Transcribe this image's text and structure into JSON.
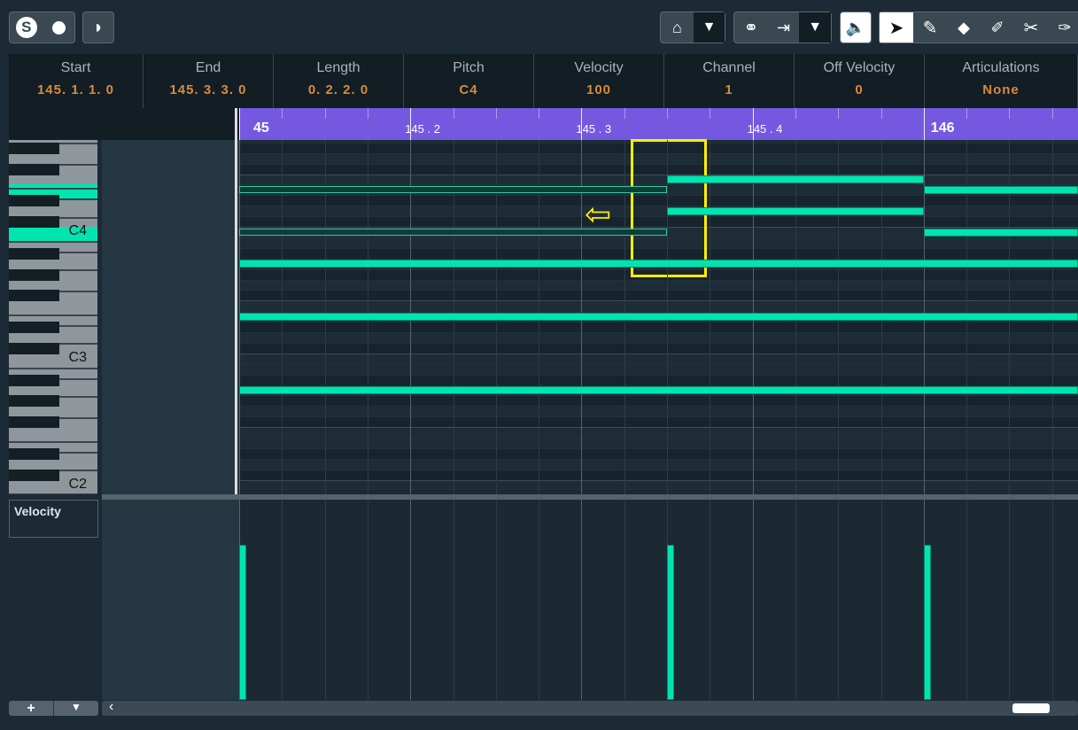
{
  "toolbar": {
    "solo_icon": "S",
    "items": [
      "solo-icon",
      "record-icon",
      "moon-icon",
      "snap-icon",
      "link-icon",
      "transform-icon",
      "speaker-icon",
      "arrow-tool-icon",
      "pencil-tool-icon",
      "eraser-tool-icon",
      "marker-tool-icon",
      "scissors-tool-icon",
      "paint-tool-icon"
    ],
    "dropdown": "▼"
  },
  "info_line": [
    {
      "label": "Start",
      "value": "145. 1. 1.   0"
    },
    {
      "label": "End",
      "value": "145. 3. 3.   0"
    },
    {
      "label": "Length",
      "value": "0. 2. 2.   0"
    },
    {
      "label": "Pitch",
      "value": "C4"
    },
    {
      "label": "Velocity",
      "value": "100"
    },
    {
      "label": "Channel",
      "value": "1"
    },
    {
      "label": "Off Velocity",
      "value": "0"
    },
    {
      "label": "Articulations",
      "value": "None"
    }
  ],
  "ruler": {
    "labels": [
      {
        "pos": "145.1",
        "text": "45"
      },
      {
        "pos": "145.2",
        "text": "145 . 2"
      },
      {
        "pos": "145.3",
        "text": "145 . 3"
      },
      {
        "pos": "145.4",
        "text": "145 . 4"
      },
      {
        "pos": "146.1",
        "text": "146"
      }
    ],
    "color": "#7459e0"
  },
  "keyboard": {
    "labels": {
      "C4": "C4",
      "C3": "C3",
      "C2": "C2"
    },
    "highlighted": [
      "E4",
      "C4"
    ]
  },
  "notes": [
    {
      "pitch": "E4",
      "start": "145.1.1",
      "end": "145.3.3",
      "selected": true,
      "velocity": 100
    },
    {
      "pitch": "C4",
      "start": "145.1.1",
      "end": "145.3.3",
      "selected": true,
      "velocity": 100
    },
    {
      "pitch": "F4",
      "start": "145.3.3",
      "end": "146.1.1",
      "selected": false,
      "velocity": 100
    },
    {
      "pitch": "D4",
      "start": "145.3.3",
      "end": "146.1.1",
      "selected": false,
      "velocity": 100
    },
    {
      "pitch": "E4",
      "start": "146.1.1",
      "end": "146.2.1",
      "selected": false,
      "velocity": 100
    },
    {
      "pitch": "C4",
      "start": "146.1.1",
      "end": "146.2.1",
      "selected": false,
      "velocity": 100
    },
    {
      "pitch": "A3",
      "start": "145.1.1",
      "end": "146.2.1",
      "selected": false,
      "velocity": 100
    },
    {
      "pitch": "E3",
      "start": "145.1.1",
      "end": "146.2.1",
      "selected": false,
      "velocity": 100
    },
    {
      "pitch": "A2",
      "start": "145.1.1",
      "end": "146.2.1",
      "selected": false,
      "velocity": 100
    }
  ],
  "velocity_lane": {
    "label": "Velocity",
    "add": "+",
    "menu": "▼"
  },
  "scroll": {
    "left": "‹"
  },
  "annotation": {
    "color": "#ffee00",
    "arrow": "⇦"
  },
  "colors": {
    "note": "#00e5b0",
    "accent": "#d98a3a"
  }
}
